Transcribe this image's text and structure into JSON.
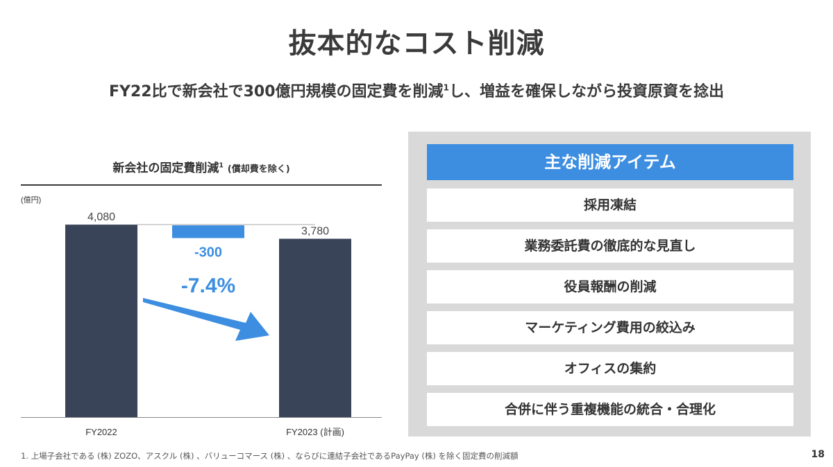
{
  "page": {
    "title": "抜本的なコスト削減",
    "subtitle_main": "FY22比で新会社で300億円規模の固定費を削減",
    "subtitle_sup": "1",
    "subtitle_rest": "し、増益を確保しながら投資原資を捻出",
    "footnote": "1. 上場子会社である (株) ZOZO、アスクル (株) 、バリューコマース (株) 、ならびに連結子会社であるPayPay (株) を除く固定費の削減額",
    "page_number": "18"
  },
  "chart_data": {
    "type": "bar",
    "title": "新会社の固定費削減",
    "title_sup": "1",
    "title_note": "(償却費を除く)",
    "unit_label": "(億円)",
    "categories": [
      "FY2022",
      "FY2023 (計画)"
    ],
    "values": [
      4080,
      3780
    ],
    "value_labels": [
      "4,080",
      "3,780"
    ],
    "difference": -300,
    "difference_label": "-300",
    "percent_label": "-7.4%",
    "ylim": [
      0,
      4200
    ],
    "colors": {
      "bar": "#3a4458",
      "accent": "#3d8ee0"
    }
  },
  "panel": {
    "header": "主な削減アイテム",
    "items": [
      "採用凍結",
      "業務委託費の徹底的な見直し",
      "役員報酬の削減",
      "マーケティング費用の絞込み",
      "オフィスの集約",
      "合併に伴う重複機能の統合・合理化"
    ]
  }
}
